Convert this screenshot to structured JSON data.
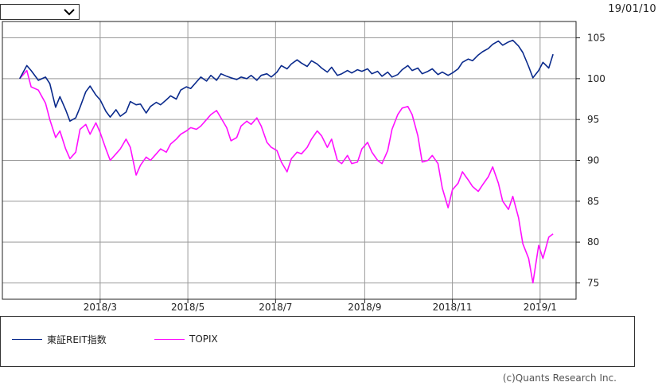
{
  "selector": {
    "value": ""
  },
  "date_label": "19/01/10",
  "credit": "(c)Quants Research Inc.",
  "colors": {
    "reit": "#0a2a8c",
    "topix": "#ff10ff",
    "grid": "#999999",
    "frame": "#222222"
  },
  "chart_data": {
    "type": "line",
    "title": "",
    "xlabel": "",
    "ylabel": "",
    "ylim": [
      73,
      107
    ],
    "y_ticks": [
      75,
      80,
      85,
      90,
      95,
      100,
      105
    ],
    "x_ticks": [
      {
        "label": "2018/3",
        "date": "2018-03-01"
      },
      {
        "label": "2018/5",
        "date": "2018-05-01"
      },
      {
        "label": "2018/7",
        "date": "2018-07-01"
      },
      {
        "label": "2018/9",
        "date": "2018-09-01"
      },
      {
        "label": "2018/11",
        "date": "2018-11-01"
      },
      {
        "label": "2019/1",
        "date": "2019-01-01"
      }
    ],
    "xlim": [
      "2017-12-23",
      "2019-01-26"
    ],
    "grid": true,
    "legend_position": "bottom",
    "series": [
      {
        "name": "東証REIT指数",
        "color": "#0a2a8c",
        "points": [
          [
            "2018-01-04",
            100.0
          ],
          [
            "2018-01-09",
            101.6
          ],
          [
            "2018-01-12",
            101.0
          ],
          [
            "2018-01-17",
            99.8
          ],
          [
            "2018-01-22",
            100.2
          ],
          [
            "2018-01-25",
            99.4
          ],
          [
            "2018-01-29",
            96.5
          ],
          [
            "2018-02-01",
            97.8
          ],
          [
            "2018-02-05",
            96.2
          ],
          [
            "2018-02-08",
            94.8
          ],
          [
            "2018-02-12",
            95.2
          ],
          [
            "2018-02-15",
            96.5
          ],
          [
            "2018-02-19",
            98.4
          ],
          [
            "2018-02-22",
            99.1
          ],
          [
            "2018-02-26",
            98.0
          ],
          [
            "2018-03-01",
            97.4
          ],
          [
            "2018-03-05",
            96.0
          ],
          [
            "2018-03-08",
            95.3
          ],
          [
            "2018-03-12",
            96.2
          ],
          [
            "2018-03-15",
            95.4
          ],
          [
            "2018-03-19",
            95.9
          ],
          [
            "2018-03-22",
            97.2
          ],
          [
            "2018-03-26",
            96.8
          ],
          [
            "2018-03-29",
            96.9
          ],
          [
            "2018-04-02",
            95.8
          ],
          [
            "2018-04-05",
            96.6
          ],
          [
            "2018-04-09",
            97.1
          ],
          [
            "2018-04-12",
            96.8
          ],
          [
            "2018-04-16",
            97.4
          ],
          [
            "2018-04-19",
            97.9
          ],
          [
            "2018-04-23",
            97.5
          ],
          [
            "2018-04-26",
            98.6
          ],
          [
            "2018-04-30",
            99.0
          ],
          [
            "2018-05-03",
            98.8
          ],
          [
            "2018-05-07",
            99.6
          ],
          [
            "2018-05-10",
            100.2
          ],
          [
            "2018-05-14",
            99.7
          ],
          [
            "2018-05-17",
            100.4
          ],
          [
            "2018-05-21",
            99.8
          ],
          [
            "2018-05-24",
            100.6
          ],
          [
            "2018-05-28",
            100.3
          ],
          [
            "2018-05-31",
            100.1
          ],
          [
            "2018-06-04",
            99.9
          ],
          [
            "2018-06-07",
            100.2
          ],
          [
            "2018-06-11",
            100.0
          ],
          [
            "2018-06-14",
            100.4
          ],
          [
            "2018-06-18",
            99.8
          ],
          [
            "2018-06-21",
            100.4
          ],
          [
            "2018-06-25",
            100.6
          ],
          [
            "2018-06-28",
            100.2
          ],
          [
            "2018-07-02",
            100.8
          ],
          [
            "2018-07-05",
            101.6
          ],
          [
            "2018-07-09",
            101.2
          ],
          [
            "2018-07-12",
            101.8
          ],
          [
            "2018-07-16",
            102.3
          ],
          [
            "2018-07-19",
            101.9
          ],
          [
            "2018-07-23",
            101.5
          ],
          [
            "2018-07-26",
            102.2
          ],
          [
            "2018-07-30",
            101.8
          ],
          [
            "2018-08-02",
            101.3
          ],
          [
            "2018-08-06",
            100.8
          ],
          [
            "2018-08-09",
            101.4
          ],
          [
            "2018-08-13",
            100.4
          ],
          [
            "2018-08-16",
            100.6
          ],
          [
            "2018-08-20",
            101.0
          ],
          [
            "2018-08-23",
            100.7
          ],
          [
            "2018-08-27",
            101.1
          ],
          [
            "2018-08-30",
            100.9
          ],
          [
            "2018-09-03",
            101.2
          ],
          [
            "2018-09-06",
            100.6
          ],
          [
            "2018-09-10",
            100.9
          ],
          [
            "2018-09-13",
            100.3
          ],
          [
            "2018-09-17",
            100.8
          ],
          [
            "2018-09-20",
            100.2
          ],
          [
            "2018-09-24",
            100.5
          ],
          [
            "2018-09-27",
            101.1
          ],
          [
            "2018-10-01",
            101.6
          ],
          [
            "2018-10-04",
            101.0
          ],
          [
            "2018-10-08",
            101.3
          ],
          [
            "2018-10-11",
            100.6
          ],
          [
            "2018-10-15",
            100.9
          ],
          [
            "2018-10-18",
            101.2
          ],
          [
            "2018-10-22",
            100.5
          ],
          [
            "2018-10-25",
            100.8
          ],
          [
            "2018-10-29",
            100.4
          ],
          [
            "2018-11-01",
            100.7
          ],
          [
            "2018-11-05",
            101.2
          ],
          [
            "2018-11-08",
            102.0
          ],
          [
            "2018-11-12",
            102.4
          ],
          [
            "2018-11-15",
            102.2
          ],
          [
            "2018-11-19",
            102.9
          ],
          [
            "2018-11-22",
            103.3
          ],
          [
            "2018-11-26",
            103.7
          ],
          [
            "2018-11-29",
            104.2
          ],
          [
            "2018-12-03",
            104.6
          ],
          [
            "2018-12-06",
            104.1
          ],
          [
            "2018-12-10",
            104.5
          ],
          [
            "2018-12-13",
            104.7
          ],
          [
            "2018-12-17",
            104.0
          ],
          [
            "2018-12-20",
            103.2
          ],
          [
            "2018-12-24",
            101.5
          ],
          [
            "2018-12-27",
            100.1
          ],
          [
            "2018-12-31",
            101.0
          ],
          [
            "2019-01-03",
            102.0
          ],
          [
            "2019-01-07",
            101.3
          ],
          [
            "2019-01-10",
            103.0
          ]
        ]
      },
      {
        "name": "TOPIX",
        "color": "#ff10ff",
        "points": [
          [
            "2018-01-04",
            100.0
          ],
          [
            "2018-01-09",
            101.0
          ],
          [
            "2018-01-12",
            99.0
          ],
          [
            "2018-01-17",
            98.6
          ],
          [
            "2018-01-22",
            97.0
          ],
          [
            "2018-01-25",
            95.0
          ],
          [
            "2018-01-29",
            92.8
          ],
          [
            "2018-02-01",
            93.6
          ],
          [
            "2018-02-05",
            91.4
          ],
          [
            "2018-02-08",
            90.2
          ],
          [
            "2018-02-12",
            91.0
          ],
          [
            "2018-02-15",
            93.8
          ],
          [
            "2018-02-19",
            94.4
          ],
          [
            "2018-02-22",
            93.2
          ],
          [
            "2018-02-26",
            94.6
          ],
          [
            "2018-03-01",
            93.4
          ],
          [
            "2018-03-05",
            91.4
          ],
          [
            "2018-03-08",
            90.0
          ],
          [
            "2018-03-12",
            90.8
          ],
          [
            "2018-03-15",
            91.4
          ],
          [
            "2018-03-19",
            92.6
          ],
          [
            "2018-03-22",
            91.6
          ],
          [
            "2018-03-26",
            88.2
          ],
          [
            "2018-03-29",
            89.4
          ],
          [
            "2018-04-02",
            90.4
          ],
          [
            "2018-04-05",
            90.0
          ],
          [
            "2018-04-09",
            90.8
          ],
          [
            "2018-04-12",
            91.4
          ],
          [
            "2018-04-16",
            91.0
          ],
          [
            "2018-04-19",
            92.0
          ],
          [
            "2018-04-23",
            92.6
          ],
          [
            "2018-04-26",
            93.2
          ],
          [
            "2018-04-30",
            93.6
          ],
          [
            "2018-05-03",
            94.0
          ],
          [
            "2018-05-07",
            93.8
          ],
          [
            "2018-05-10",
            94.2
          ],
          [
            "2018-05-14",
            95.0
          ],
          [
            "2018-05-17",
            95.6
          ],
          [
            "2018-05-21",
            96.1
          ],
          [
            "2018-05-24",
            95.2
          ],
          [
            "2018-05-28",
            94.0
          ],
          [
            "2018-05-31",
            92.4
          ],
          [
            "2018-06-04",
            92.8
          ],
          [
            "2018-06-07",
            94.2
          ],
          [
            "2018-06-11",
            94.8
          ],
          [
            "2018-06-14",
            94.4
          ],
          [
            "2018-06-18",
            95.2
          ],
          [
            "2018-06-21",
            94.2
          ],
          [
            "2018-06-25",
            92.2
          ],
          [
            "2018-06-28",
            91.6
          ],
          [
            "2018-07-02",
            91.2
          ],
          [
            "2018-07-05",
            89.8
          ],
          [
            "2018-07-09",
            88.6
          ],
          [
            "2018-07-12",
            90.2
          ],
          [
            "2018-07-16",
            91.0
          ],
          [
            "2018-07-19",
            90.8
          ],
          [
            "2018-07-23",
            91.6
          ],
          [
            "2018-07-26",
            92.6
          ],
          [
            "2018-07-30",
            93.6
          ],
          [
            "2018-08-02",
            93.0
          ],
          [
            "2018-08-06",
            91.6
          ],
          [
            "2018-08-09",
            92.6
          ],
          [
            "2018-08-13",
            90.0
          ],
          [
            "2018-08-16",
            89.6
          ],
          [
            "2018-08-20",
            90.6
          ],
          [
            "2018-08-23",
            89.6
          ],
          [
            "2018-08-27",
            89.8
          ],
          [
            "2018-08-30",
            91.4
          ],
          [
            "2018-09-03",
            92.2
          ],
          [
            "2018-09-06",
            91.0
          ],
          [
            "2018-09-10",
            90.0
          ],
          [
            "2018-09-13",
            89.6
          ],
          [
            "2018-09-17",
            91.2
          ],
          [
            "2018-09-20",
            93.8
          ],
          [
            "2018-09-24",
            95.6
          ],
          [
            "2018-09-27",
            96.4
          ],
          [
            "2018-10-01",
            96.6
          ],
          [
            "2018-10-04",
            95.6
          ],
          [
            "2018-10-08",
            93.0
          ],
          [
            "2018-10-11",
            89.8
          ],
          [
            "2018-10-15",
            90.0
          ],
          [
            "2018-10-18",
            90.6
          ],
          [
            "2018-10-22",
            89.6
          ],
          [
            "2018-10-25",
            86.6
          ],
          [
            "2018-10-29",
            84.2
          ],
          [
            "2018-11-01",
            86.4
          ],
          [
            "2018-11-05",
            87.2
          ],
          [
            "2018-11-08",
            88.6
          ],
          [
            "2018-11-12",
            87.6
          ],
          [
            "2018-11-15",
            86.8
          ],
          [
            "2018-11-19",
            86.2
          ],
          [
            "2018-11-22",
            87.0
          ],
          [
            "2018-11-26",
            88.0
          ],
          [
            "2018-11-29",
            89.2
          ],
          [
            "2018-12-03",
            87.2
          ],
          [
            "2018-12-06",
            85.0
          ],
          [
            "2018-12-10",
            84.0
          ],
          [
            "2018-12-13",
            85.6
          ],
          [
            "2018-12-17",
            83.0
          ],
          [
            "2018-12-20",
            79.8
          ],
          [
            "2018-12-24",
            78.0
          ],
          [
            "2018-12-27",
            75.0
          ],
          [
            "2018-12-31",
            79.6
          ],
          [
            "2019-01-03",
            78.0
          ],
          [
            "2019-01-07",
            80.6
          ],
          [
            "2019-01-10",
            81.0
          ]
        ]
      }
    ]
  }
}
